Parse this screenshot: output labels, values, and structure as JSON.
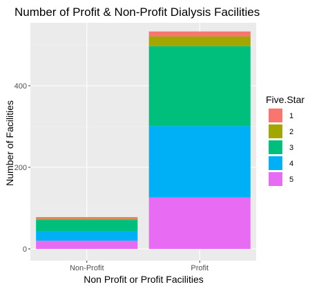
{
  "chart_data": {
    "type": "bar",
    "stacked": true,
    "title": "Number of Profit & Non-Profit Dialysis Facilities",
    "xlabel": "Non Profit or Profit Facilities",
    "ylabel": "Number of Facilities",
    "categories": [
      "Non-Profit",
      "Profit"
    ],
    "ylim": [
      0,
      550
    ],
    "yticks": [
      0,
      200,
      400
    ],
    "grid": true,
    "legend": {
      "title": "Five.Star",
      "position": "right",
      "entries": [
        "1",
        "2",
        "3",
        "4",
        "5"
      ]
    },
    "series": [
      {
        "name": "1",
        "color": "#F8766D",
        "values": [
          4,
          12
        ]
      },
      {
        "name": "2",
        "color": "#A3A500",
        "values": [
          3,
          24
        ]
      },
      {
        "name": "3",
        "color": "#00BF7D",
        "values": [
          27,
          196
        ]
      },
      {
        "name": "4",
        "color": "#00B0F6",
        "values": [
          24,
          175
        ]
      },
      {
        "name": "5",
        "color": "#E76BF3",
        "values": [
          20,
          126
        ]
      }
    ]
  }
}
